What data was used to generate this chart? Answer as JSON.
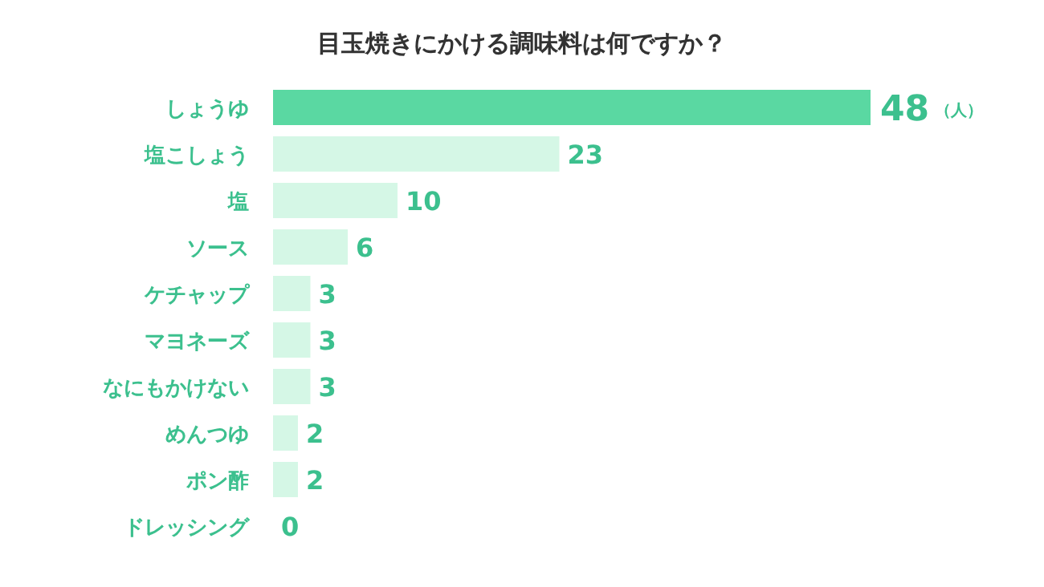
{
  "chart_data": {
    "type": "bar",
    "orientation": "horizontal",
    "title": "目玉焼きにかける調味料は何ですか？",
    "categories": [
      "しょうゆ",
      "塩こしょう",
      "塩",
      "ソース",
      "ケチャップ",
      "マヨネーズ",
      "なにもかけない",
      "めんつゆ",
      "ポン酢",
      "ドレッシング"
    ],
    "values": [
      48,
      23,
      10,
      6,
      3,
      3,
      3,
      2,
      2,
      0
    ],
    "colors": [
      "#5ad8a2",
      "#d5f7e6",
      "#d5f7e6",
      "#d5f7e6",
      "#d5f7e6",
      "#d5f7e6",
      "#d5f7e6",
      "#d5f7e6",
      "#d5f7e6",
      "#d5f7e6"
    ],
    "data_labels": true,
    "annotations": [
      "（人）"
    ]
  }
}
